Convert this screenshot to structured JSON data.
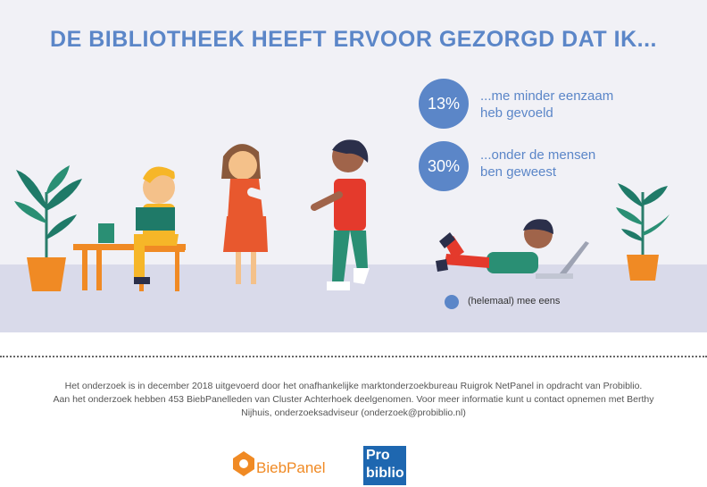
{
  "title": "DE BIBLIOTHEEK HEEFT ERVOOR GEZORGD DAT IK...",
  "stats": [
    {
      "value": "13%",
      "line1": "...me minder eenzaam",
      "line2": "heb gevoeld",
      "share": 0.13
    },
    {
      "value": "30%",
      "line1": "...onder de mensen",
      "line2": "ben geweest",
      "share": 0.3
    }
  ],
  "legend": {
    "label": "(helemaal) mee eens",
    "color": "#5b86c8"
  },
  "footnote": {
    "line1": "Het onderzoek is in december 2018 uitgevoerd door het onafhankelijke marktonderzoekbureau Ruigrok NetPanel in opdracht van Probiblio.",
    "line2": "Aan het onderzoek hebben 453 BiebPanelleden van Cluster Achterhoek deelgenomen. Voor meer informatie kunt u contact opnemen met Berthy",
    "line3": "Nijhuis, onderzoeksadviseur (onderzoek@probiblio.nl)"
  },
  "logos": {
    "biebpanel": "BiebPanel",
    "probiblio_line1": "Pro",
    "probiblio_line2": "biblio"
  },
  "colors": {
    "accent": "#5b86c8",
    "floor": "#d9daea",
    "orange": "#f08a24",
    "probiblio": "#1e67b0"
  }
}
